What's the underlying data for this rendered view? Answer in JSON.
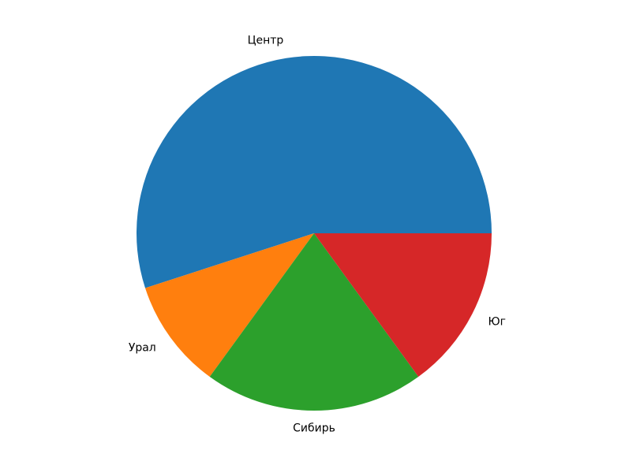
{
  "chart_data": {
    "type": "pie",
    "categories": [
      "Центр",
      "Урал",
      "Сибирь",
      "Юг"
    ],
    "values": [
      55,
      10,
      20,
      15
    ],
    "colors": [
      "#1f77b4",
      "#ff7f0e",
      "#2ca02c",
      "#d62728"
    ],
    "start_angle_deg": 0,
    "direction": "counterclockwise",
    "legend": "none"
  }
}
